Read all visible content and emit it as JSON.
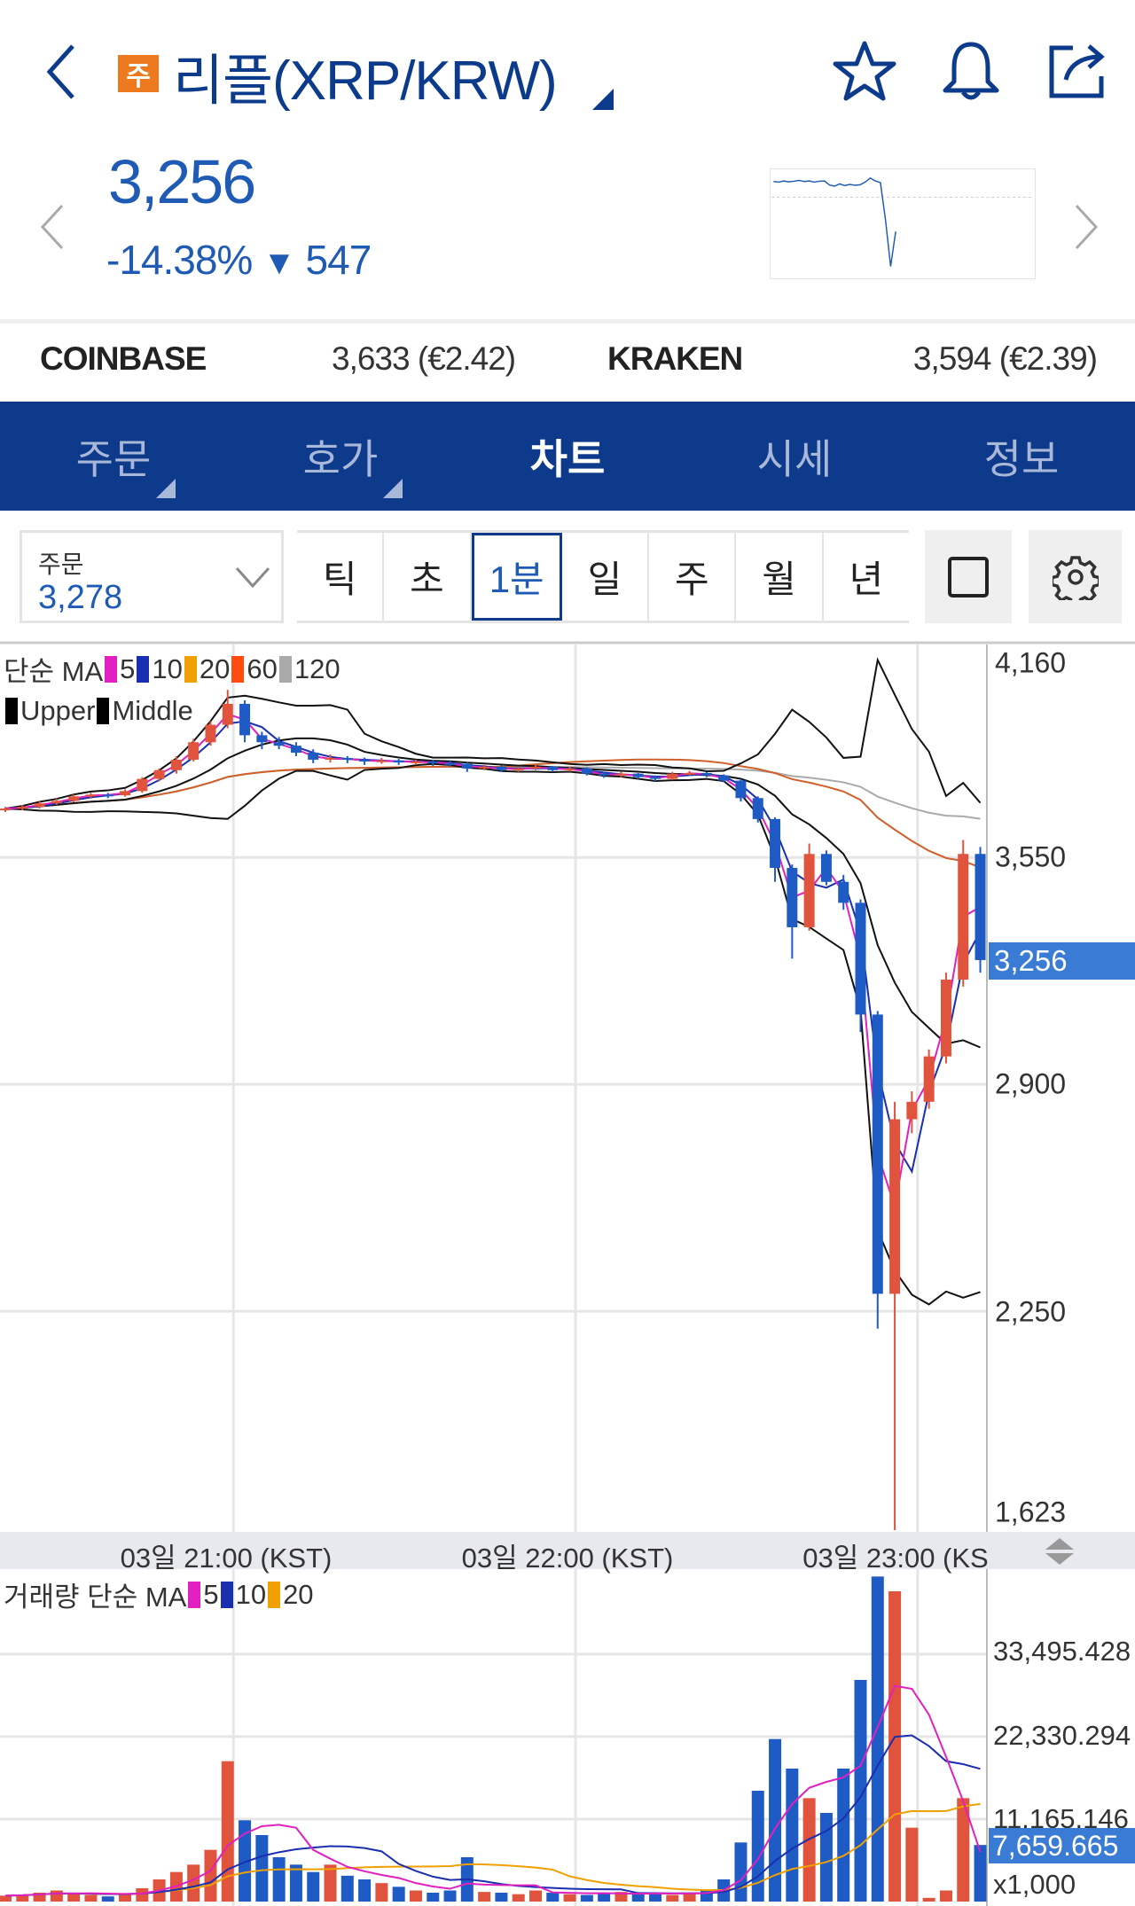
{
  "header": {
    "badge": "주",
    "title": "리플(XRP/KRW)",
    "icons": [
      "back-chevron-icon",
      "star-icon",
      "bell-icon",
      "share-icon"
    ]
  },
  "quote": {
    "price": "3,256",
    "change_pct": "-14.38%",
    "change_arrow": "▼",
    "change_abs": "547",
    "color": "#1f5bb5",
    "sparkline": [
      3760,
      3750,
      3770,
      3755,
      3765,
      3780,
      3760,
      3770,
      3750,
      3765,
      3770,
      3700,
      3680,
      3720,
      3690,
      3710,
      3695,
      3705,
      3750,
      3820,
      3770,
      3740,
      3100,
      2300,
      2900
    ]
  },
  "exchanges": [
    {
      "name": "COINBASE",
      "value": "3,633 (€2.42)"
    },
    {
      "name": "KRAKEN",
      "value": "3,594 (€2.39)"
    }
  ],
  "tabs": [
    {
      "label": "주문",
      "has_menu": true
    },
    {
      "label": "호가",
      "has_menu": true
    },
    {
      "label": "차트",
      "active": true
    },
    {
      "label": "시세"
    },
    {
      "label": "정보"
    }
  ],
  "order_box": {
    "label": "주문",
    "value": "3,278"
  },
  "periods": [
    {
      "label": "틱"
    },
    {
      "label": "초"
    },
    {
      "label": "1분",
      "active": true
    },
    {
      "label": "일"
    },
    {
      "label": "주"
    },
    {
      "label": "월"
    },
    {
      "label": "년"
    }
  ],
  "chart_data": {
    "type": "candlestick",
    "price_legend": {
      "label": "단순 MA",
      "ma": [
        {
          "period": "5",
          "color": "#e020c0"
        },
        {
          "period": "10",
          "color": "#1a2fb0"
        },
        {
          "period": "20",
          "color": "#f0a000"
        },
        {
          "period": "60",
          "color": "#ff4a10"
        },
        {
          "period": "120",
          "color": "#aaaaaa"
        }
      ],
      "bands": [
        "Upper",
        "Middle"
      ]
    },
    "volume_legend": {
      "label": "거래량 단순 MA",
      "ma": [
        {
          "period": "5",
          "color": "#e020c0"
        },
        {
          "period": "10",
          "color": "#1a2fb0"
        },
        {
          "period": "20",
          "color": "#f0a000"
        }
      ]
    },
    "ylim": [
      1623,
      4160
    ],
    "y_ticks": [
      "4,160",
      "3,550",
      "2,900",
      "2,250",
      "1,623"
    ],
    "y_tick_values": [
      4160,
      3550,
      2900,
      2250,
      1623
    ],
    "current_price": "3,256",
    "x_ticks": [
      "03일 21:00 (KST)",
      "03일 22:00 (KST)",
      "03일 23:00 (KS"
    ],
    "x_tick_times": [
      "21:00",
      "22:00",
      "23:00"
    ],
    "up_color": "#e0533d",
    "down_color": "#1f5bc4",
    "times": [
      "20:20",
      "20:23",
      "20:26",
      "20:29",
      "20:32",
      "20:35",
      "20:38",
      "20:41",
      "20:44",
      "20:47",
      "20:50",
      "20:53",
      "20:56",
      "20:59",
      "21:02",
      "21:05",
      "21:08",
      "21:11",
      "21:14",
      "21:17",
      "21:20",
      "21:23",
      "21:26",
      "21:29",
      "21:32",
      "21:35",
      "21:38",
      "21:41",
      "21:44",
      "21:47",
      "21:50",
      "21:53",
      "21:56",
      "21:59",
      "22:02",
      "22:05",
      "22:08",
      "22:11",
      "22:14",
      "22:17",
      "22:20",
      "22:23",
      "22:26",
      "22:29",
      "22:32",
      "22:35",
      "22:38",
      "22:41",
      "22:44",
      "22:47",
      "22:50",
      "22:53",
      "22:56",
      "22:59",
      "23:02",
      "23:05",
      "23:08",
      "23:11"
    ],
    "ohlc": [
      [
        3685,
        3695,
        3680,
        3690
      ],
      [
        3690,
        3700,
        3685,
        3695
      ],
      [
        3695,
        3710,
        3690,
        3705
      ],
      [
        3705,
        3718,
        3700,
        3712
      ],
      [
        3712,
        3730,
        3708,
        3725
      ],
      [
        3725,
        3735,
        3718,
        3730
      ],
      [
        3730,
        3735,
        3720,
        3728
      ],
      [
        3728,
        3745,
        3724,
        3740
      ],
      [
        3740,
        3780,
        3735,
        3775
      ],
      [
        3775,
        3805,
        3768,
        3800
      ],
      [
        3800,
        3840,
        3790,
        3830
      ],
      [
        3830,
        3890,
        3825,
        3880
      ],
      [
        3880,
        3940,
        3870,
        3930
      ],
      [
        3930,
        4030,
        3920,
        3990
      ],
      [
        3990,
        4000,
        3880,
        3900
      ],
      [
        3900,
        3910,
        3860,
        3880
      ],
      [
        3880,
        3895,
        3860,
        3870
      ],
      [
        3870,
        3880,
        3840,
        3850
      ],
      [
        3850,
        3860,
        3820,
        3830
      ],
      [
        3830,
        3845,
        3822,
        3835
      ],
      [
        3835,
        3840,
        3820,
        3830
      ],
      [
        3830,
        3836,
        3815,
        3825
      ],
      [
        3825,
        3835,
        3818,
        3828
      ],
      [
        3828,
        3832,
        3815,
        3822
      ],
      [
        3822,
        3830,
        3815,
        3825
      ],
      [
        3825,
        3830,
        3812,
        3820
      ],
      [
        3820,
        3826,
        3810,
        3818
      ],
      [
        3818,
        3822,
        3795,
        3805
      ],
      [
        3805,
        3815,
        3800,
        3810
      ],
      [
        3810,
        3814,
        3795,
        3800
      ],
      [
        3800,
        3810,
        3795,
        3805
      ],
      [
        3805,
        3815,
        3800,
        3810
      ],
      [
        3810,
        3812,
        3795,
        3800
      ],
      [
        3800,
        3810,
        3796,
        3805
      ],
      [
        3805,
        3808,
        3785,
        3790
      ],
      [
        3790,
        3795,
        3778,
        3785
      ],
      [
        3785,
        3795,
        3780,
        3790
      ],
      [
        3790,
        3792,
        3775,
        3780
      ],
      [
        3780,
        3785,
        3768,
        3775
      ],
      [
        3775,
        3795,
        3772,
        3790
      ],
      [
        3790,
        3798,
        3785,
        3792
      ],
      [
        3792,
        3795,
        3780,
        3785
      ],
      [
        3785,
        3788,
        3765,
        3770
      ],
      [
        3770,
        3775,
        3710,
        3720
      ],
      [
        3720,
        3725,
        3650,
        3660
      ],
      [
        3660,
        3665,
        3480,
        3520
      ],
      [
        3520,
        3530,
        3260,
        3350
      ],
      [
        3350,
        3590,
        3340,
        3560
      ],
      [
        3560,
        3570,
        3470,
        3480
      ],
      [
        3480,
        3500,
        3400,
        3420
      ],
      [
        3420,
        3430,
        3050,
        3100
      ],
      [
        3100,
        3110,
        2200,
        2300
      ],
      [
        2300,
        2850,
        1623,
        2800
      ],
      [
        2800,
        2880,
        2760,
        2850
      ],
      [
        2850,
        3000,
        2830,
        2980
      ],
      [
        2980,
        3220,
        2960,
        3200
      ],
      [
        3200,
        3600,
        3180,
        3560
      ],
      [
        3560,
        3580,
        3220,
        3256
      ]
    ],
    "volume_unit": "x1,000",
    "volume_ylim": [
      0,
      45000
    ],
    "volume_ticks": [
      "33,495.428",
      "22,330.294",
      "11,165.146"
    ],
    "volume_tick_values": [
      33495.428,
      22330.294,
      11165.146
    ],
    "current_volume": "7,659.665",
    "volume": [
      800,
      900,
      1200,
      1500,
      1100,
      900,
      700,
      1000,
      1800,
      3000,
      4000,
      5000,
      7000,
      19000,
      11000,
      9000,
      6000,
      5000,
      4000,
      5000,
      3500,
      3000,
      2500,
      2000,
      1500,
      1200,
      1500,
      6000,
      1300,
      1200,
      1000,
      1500,
      1200,
      1000,
      900,
      1100,
      1300,
      1000,
      1200,
      900,
      1100,
      1500,
      3000,
      8000,
      15000,
      22000,
      18000,
      14000,
      12000,
      18000,
      30000,
      44000,
      42000,
      10000,
      500,
      1500,
      14000,
      7660
    ]
  }
}
